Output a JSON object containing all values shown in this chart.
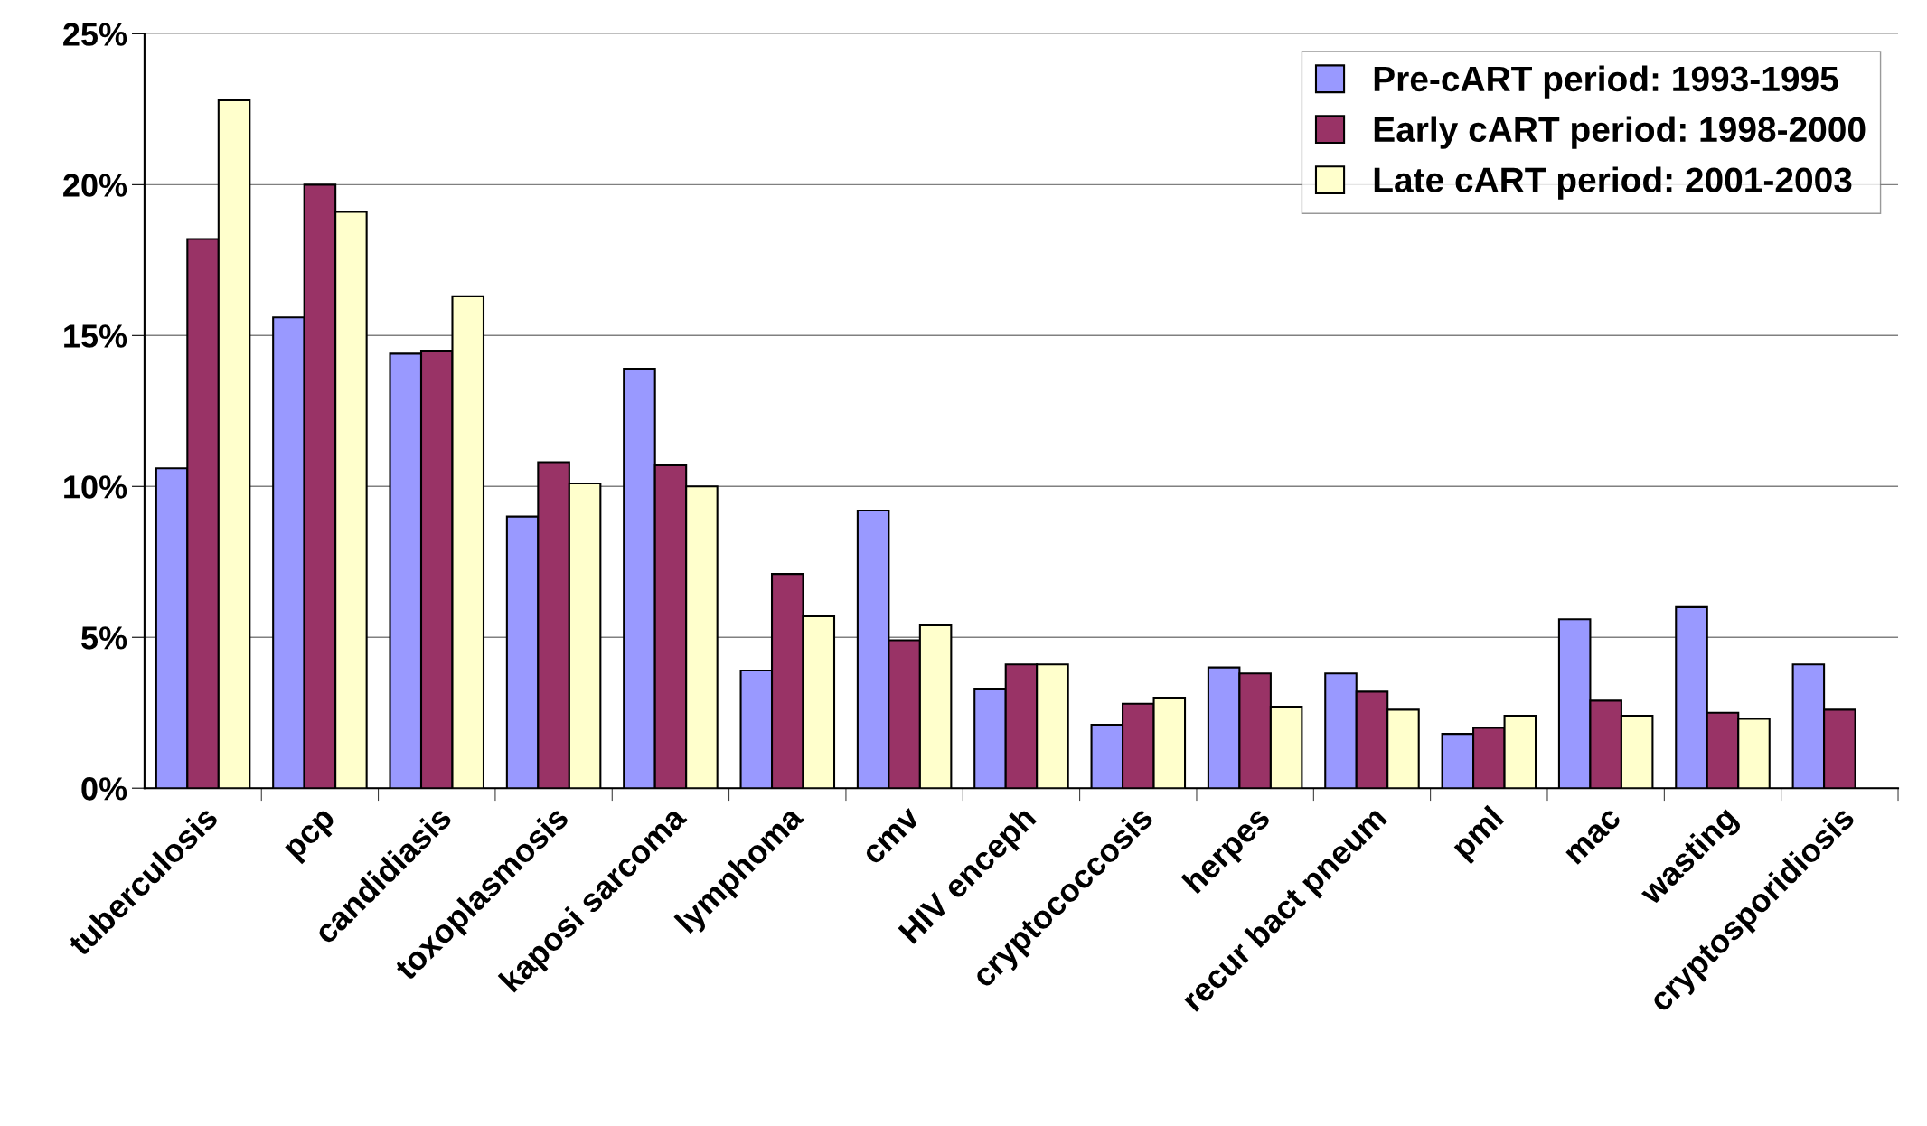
{
  "chart_data": {
    "type": "bar",
    "categories": [
      "tuberculosis",
      "pcp",
      "candidiasis",
      "toxoplasmosis",
      "kaposi sarcoma",
      "lymphoma",
      "cmv",
      "HIV enceph",
      "cryptococcosis",
      "herpes",
      "recur bact pneum",
      "pml",
      "mac",
      "wasting",
      "cryptosporidiosis"
    ],
    "series": [
      {
        "name": "Pre-cART period: 1993-1995",
        "color": "#9999ff",
        "values": [
          10.6,
          15.6,
          14.4,
          9.0,
          13.9,
          3.9,
          9.2,
          3.3,
          2.1,
          4.0,
          3.8,
          1.8,
          5.6,
          6.0,
          4.1
        ]
      },
      {
        "name": "Early cART period: 1998-2000",
        "color": "#993366",
        "values": [
          18.2,
          20.0,
          14.5,
          10.8,
          10.7,
          7.1,
          4.9,
          4.1,
          2.8,
          3.8,
          3.2,
          2.0,
          2.9,
          2.5,
          2.6
        ]
      },
      {
        "name": "Late cART period: 2001-2003",
        "color": "#ffffcc",
        "values": [
          22.8,
          19.1,
          16.3,
          10.1,
          10.0,
          5.7,
          5.4,
          4.1,
          3.0,
          2.7,
          2.6,
          2.4,
          2.4,
          2.3,
          null
        ]
      }
    ],
    "ylim": [
      0,
      25
    ],
    "yticks": [
      {
        "value": 0,
        "label": "0%"
      },
      {
        "value": 5,
        "label": "5%"
      },
      {
        "value": 10,
        "label": "10%"
      },
      {
        "value": 15,
        "label": "15%"
      },
      {
        "value": 20,
        "label": "20%"
      },
      {
        "value": 25,
        "label": "25%"
      }
    ],
    "grid": "y",
    "legend": "top right"
  }
}
